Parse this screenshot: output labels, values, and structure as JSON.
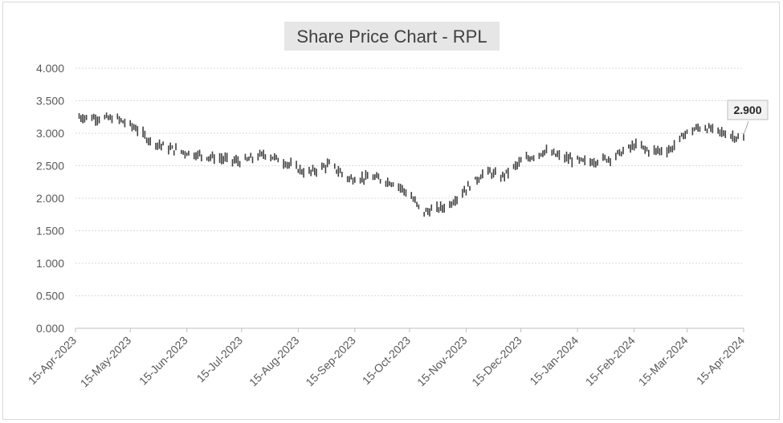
{
  "chart_data": {
    "type": "line",
    "style": "high-low-close",
    "title": "Share Price Chart - RPL",
    "xlabel": "",
    "ylabel": "",
    "ylim": [
      0,
      4
    ],
    "yticks": [
      "0.000",
      "0.500",
      "1.000",
      "1.500",
      "2.000",
      "2.500",
      "3.000",
      "3.500",
      "4.000"
    ],
    "xticks": [
      "15-Apr-2023",
      "15-May-2023",
      "15-Jun-2023",
      "15-Jul-2023",
      "15-Aug-2023",
      "15-Sep-2023",
      "15-Oct-2023",
      "15-Nov-2023",
      "15-Dec-2023",
      "15-Jan-2024",
      "15-Feb-2024",
      "15-Mar-2024",
      "15-Apr-2024"
    ],
    "xlim": [
      "2023-04-15",
      "2024-04-15"
    ],
    "grid": "horizontal",
    "series_color": "#404040",
    "anchors": [
      {
        "date": "2023-04-17",
        "close": 3.25
      },
      {
        "date": "2023-04-25",
        "close": 3.24
      },
      {
        "date": "2023-05-08",
        "close": 3.22
      },
      {
        "date": "2023-05-18",
        "close": 3.08
      },
      {
        "date": "2023-05-26",
        "close": 2.88
      },
      {
        "date": "2023-06-05",
        "close": 2.77
      },
      {
        "date": "2023-06-15",
        "close": 2.7
      },
      {
        "date": "2023-07-01",
        "close": 2.62
      },
      {
        "date": "2023-07-15",
        "close": 2.56
      },
      {
        "date": "2023-07-28",
        "close": 2.68
      },
      {
        "date": "2023-08-08",
        "close": 2.55
      },
      {
        "date": "2023-08-20",
        "close": 2.38
      },
      {
        "date": "2023-09-01",
        "close": 2.52
      },
      {
        "date": "2023-09-12",
        "close": 2.3
      },
      {
        "date": "2023-09-25",
        "close": 2.32
      },
      {
        "date": "2023-10-08",
        "close": 2.22
      },
      {
        "date": "2023-10-16",
        "close": 2.02
      },
      {
        "date": "2023-10-22",
        "close": 1.78
      },
      {
        "date": "2023-11-05",
        "close": 1.88
      },
      {
        "date": "2023-11-14",
        "close": 2.12
      },
      {
        "date": "2023-11-26",
        "close": 2.42
      },
      {
        "date": "2023-12-04",
        "close": 2.32
      },
      {
        "date": "2023-12-16",
        "close": 2.58
      },
      {
        "date": "2023-12-28",
        "close": 2.72
      },
      {
        "date": "2024-01-08",
        "close": 2.62
      },
      {
        "date": "2024-01-20",
        "close": 2.55
      },
      {
        "date": "2024-02-02",
        "close": 2.62
      },
      {
        "date": "2024-02-16",
        "close": 2.82
      },
      {
        "date": "2024-02-24",
        "close": 2.72
      },
      {
        "date": "2024-03-06",
        "close": 2.75
      },
      {
        "date": "2024-03-14",
        "close": 3.0
      },
      {
        "date": "2024-03-23",
        "close": 3.1
      },
      {
        "date": "2024-04-02",
        "close": 3.02
      },
      {
        "date": "2024-04-10",
        "close": 2.95
      },
      {
        "date": "2024-04-15",
        "close": 2.9
      }
    ],
    "annotations": [
      {
        "date": "2024-04-15",
        "value": 2.9,
        "label": "2.900"
      }
    ]
  }
}
